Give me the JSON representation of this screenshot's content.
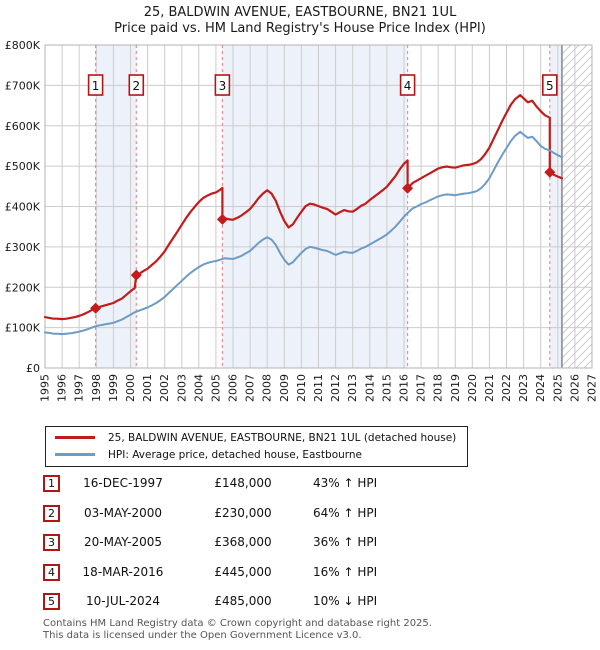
{
  "title": "25, BALDWIN AVENUE, EASTBOURNE, BN21 1UL",
  "subtitle": "Price paid vs. HM Land Registry's House Price Index (HPI)",
  "chart_data": {
    "type": "line",
    "x_range": [
      1995,
      2027
    ],
    "y_range": [
      0,
      800
    ],
    "units": "GBP_thousands",
    "y_ticks": [
      [
        0,
        "£0"
      ],
      [
        100,
        "£100K"
      ],
      [
        200,
        "£200K"
      ],
      [
        300,
        "£300K"
      ],
      [
        400,
        "£400K"
      ],
      [
        500,
        "£500K"
      ],
      [
        600,
        "£600K"
      ],
      [
        700,
        "£700K"
      ],
      [
        800,
        "£800K"
      ]
    ],
    "grid": true,
    "band_color": "#edf2fa",
    "grid_color": "#cccccc",
    "border_color": "#b3b3b3",
    "hatch_color": "#cccccc",
    "dash_line_color": "#ee8f8f",
    "hatch_start": 2025.24,
    "bands": [
      [
        1997.96,
        2000.34
      ],
      [
        2005.38,
        2016.21
      ],
      [
        2024.53,
        2025.24
      ]
    ],
    "sales": [
      {
        "n": "1",
        "x": 1997.96,
        "value": 148
      },
      {
        "n": "2",
        "x": 2000.34,
        "value": 230
      },
      {
        "n": "3",
        "x": 2005.38,
        "value": 368
      },
      {
        "n": "4",
        "x": 2016.21,
        "value": 445
      },
      {
        "n": "5",
        "x": 2024.53,
        "value": 485
      }
    ],
    "series": [
      {
        "name": "25, BALDWIN AVENUE, EASTBOURNE, BN21 1UL (detached house)",
        "color": "#c41a1a",
        "values": [
          [
            1995.0,
            126
          ],
          [
            1995.25,
            124
          ],
          [
            1995.5,
            122
          ],
          [
            1995.75,
            122
          ],
          [
            1996.0,
            121
          ],
          [
            1996.25,
            122
          ],
          [
            1996.5,
            124
          ],
          [
            1996.75,
            126
          ],
          [
            1997.0,
            129
          ],
          [
            1997.25,
            133
          ],
          [
            1997.5,
            138
          ],
          [
            1997.75,
            144
          ],
          [
            1997.96,
            148
          ],
          [
            1998.25,
            152
          ],
          [
            1998.5,
            155
          ],
          [
            1998.75,
            158
          ],
          [
            1999.0,
            161
          ],
          [
            1999.25,
            167
          ],
          [
            1999.5,
            172
          ],
          [
            1999.75,
            181
          ],
          [
            2000.0,
            190
          ],
          [
            2000.25,
            198
          ],
          [
            2000.34,
            230
          ],
          [
            2000.5,
            233
          ],
          [
            2000.75,
            240
          ],
          [
            2001.0,
            246
          ],
          [
            2001.25,
            255
          ],
          [
            2001.5,
            264
          ],
          [
            2001.75,
            276
          ],
          [
            2002.0,
            289
          ],
          [
            2002.25,
            306
          ],
          [
            2002.5,
            322
          ],
          [
            2002.75,
            338
          ],
          [
            2003.0,
            355
          ],
          [
            2003.25,
            371
          ],
          [
            2003.5,
            386
          ],
          [
            2003.75,
            399
          ],
          [
            2004.0,
            411
          ],
          [
            2004.25,
            421
          ],
          [
            2004.5,
            427
          ],
          [
            2004.75,
            432
          ],
          [
            2005.0,
            435
          ],
          [
            2005.2,
            440
          ],
          [
            2005.38,
            446
          ],
          [
            2005.38,
            368
          ],
          [
            2005.6,
            370
          ],
          [
            2005.8,
            368
          ],
          [
            2006.0,
            367
          ],
          [
            2006.25,
            372
          ],
          [
            2006.5,
            378
          ],
          [
            2006.75,
            386
          ],
          [
            2007.0,
            394
          ],
          [
            2007.25,
            407
          ],
          [
            2007.5,
            421
          ],
          [
            2007.75,
            432
          ],
          [
            2008.0,
            440
          ],
          [
            2008.25,
            432
          ],
          [
            2008.5,
            414
          ],
          [
            2008.75,
            387
          ],
          [
            2009.0,
            364
          ],
          [
            2009.25,
            348
          ],
          [
            2009.5,
            356
          ],
          [
            2009.75,
            372
          ],
          [
            2010.0,
            387
          ],
          [
            2010.25,
            401
          ],
          [
            2010.5,
            407
          ],
          [
            2010.75,
            405
          ],
          [
            2011.0,
            401
          ],
          [
            2011.25,
            397
          ],
          [
            2011.5,
            394
          ],
          [
            2011.75,
            387
          ],
          [
            2012.0,
            380
          ],
          [
            2012.25,
            386
          ],
          [
            2012.5,
            391
          ],
          [
            2012.75,
            388
          ],
          [
            2013.0,
            387
          ],
          [
            2013.25,
            394
          ],
          [
            2013.5,
            402
          ],
          [
            2013.75,
            407
          ],
          [
            2014.0,
            416
          ],
          [
            2014.25,
            424
          ],
          [
            2014.5,
            432
          ],
          [
            2014.75,
            440
          ],
          [
            2015.0,
            449
          ],
          [
            2015.25,
            462
          ],
          [
            2015.5,
            475
          ],
          [
            2015.75,
            492
          ],
          [
            2016.0,
            506
          ],
          [
            2016.21,
            514
          ],
          [
            2016.21,
            445
          ],
          [
            2016.5,
            458
          ],
          [
            2016.75,
            464
          ],
          [
            2017.0,
            470
          ],
          [
            2017.25,
            476
          ],
          [
            2017.5,
            482
          ],
          [
            2017.75,
            488
          ],
          [
            2018.0,
            494
          ],
          [
            2018.25,
            497
          ],
          [
            2018.5,
            499
          ],
          [
            2018.75,
            497
          ],
          [
            2019.0,
            496
          ],
          [
            2019.25,
            499
          ],
          [
            2019.5,
            502
          ],
          [
            2019.75,
            503
          ],
          [
            2020.0,
            505
          ],
          [
            2020.25,
            509
          ],
          [
            2020.5,
            517
          ],
          [
            2020.75,
            530
          ],
          [
            2021.0,
            546
          ],
          [
            2021.25,
            568
          ],
          [
            2021.5,
            590
          ],
          [
            2021.75,
            612
          ],
          [
            2022.0,
            632
          ],
          [
            2022.25,
            652
          ],
          [
            2022.5,
            666
          ],
          [
            2022.8,
            676
          ],
          [
            2023.0,
            668
          ],
          [
            2023.25,
            658
          ],
          [
            2023.5,
            662
          ],
          [
            2023.75,
            648
          ],
          [
            2024.0,
            636
          ],
          [
            2024.25,
            626
          ],
          [
            2024.53,
            620
          ],
          [
            2024.53,
            485
          ],
          [
            2024.75,
            479
          ],
          [
            2025.0,
            474
          ],
          [
            2025.24,
            470
          ]
        ]
      },
      {
        "name": "HPI: Average price, detached house, Eastbourne",
        "color": "#6d9bc7",
        "values": [
          [
            1995.0,
            88
          ],
          [
            1995.25,
            87
          ],
          [
            1995.5,
            85
          ],
          [
            1995.75,
            85
          ],
          [
            1996.0,
            84
          ],
          [
            1996.25,
            85
          ],
          [
            1996.5,
            86
          ],
          [
            1996.75,
            88
          ],
          [
            1997.0,
            90
          ],
          [
            1997.25,
            93
          ],
          [
            1997.5,
            96
          ],
          [
            1997.75,
            100
          ],
          [
            1998.0,
            104
          ],
          [
            1998.25,
            106
          ],
          [
            1998.5,
            108
          ],
          [
            1998.75,
            110
          ],
          [
            1999.0,
            112
          ],
          [
            1999.25,
            116
          ],
          [
            1999.5,
            120
          ],
          [
            1999.75,
            126
          ],
          [
            2000.0,
            132
          ],
          [
            2000.25,
            138
          ],
          [
            2000.5,
            142
          ],
          [
            2000.75,
            146
          ],
          [
            2001.0,
            150
          ],
          [
            2001.25,
            155
          ],
          [
            2001.5,
            161
          ],
          [
            2001.75,
            168
          ],
          [
            2002.0,
            176
          ],
          [
            2002.25,
            186
          ],
          [
            2002.5,
            196
          ],
          [
            2002.75,
            206
          ],
          [
            2003.0,
            216
          ],
          [
            2003.25,
            226
          ],
          [
            2003.5,
            235
          ],
          [
            2003.75,
            243
          ],
          [
            2004.0,
            250
          ],
          [
            2004.25,
            256
          ],
          [
            2004.5,
            260
          ],
          [
            2004.75,
            263
          ],
          [
            2005.0,
            265
          ],
          [
            2005.25,
            268
          ],
          [
            2005.5,
            272
          ],
          [
            2005.75,
            271
          ],
          [
            2006.0,
            270
          ],
          [
            2006.25,
            274
          ],
          [
            2006.5,
            278
          ],
          [
            2006.75,
            284
          ],
          [
            2007.0,
            290
          ],
          [
            2007.25,
            300
          ],
          [
            2007.5,
            310
          ],
          [
            2007.75,
            318
          ],
          [
            2008.0,
            324
          ],
          [
            2008.25,
            318
          ],
          [
            2008.5,
            305
          ],
          [
            2008.75,
            285
          ],
          [
            2009.0,
            268
          ],
          [
            2009.25,
            256
          ],
          [
            2009.5,
            262
          ],
          [
            2009.75,
            274
          ],
          [
            2010.0,
            285
          ],
          [
            2010.25,
            295
          ],
          [
            2010.5,
            300
          ],
          [
            2010.75,
            298
          ],
          [
            2011.0,
            295
          ],
          [
            2011.25,
            292
          ],
          [
            2011.5,
            290
          ],
          [
            2011.75,
            285
          ],
          [
            2012.0,
            280
          ],
          [
            2012.25,
            284
          ],
          [
            2012.5,
            288
          ],
          [
            2012.75,
            286
          ],
          [
            2013.0,
            285
          ],
          [
            2013.25,
            290
          ],
          [
            2013.5,
            296
          ],
          [
            2013.75,
            300
          ],
          [
            2014.0,
            306
          ],
          [
            2014.25,
            312
          ],
          [
            2014.5,
            318
          ],
          [
            2014.75,
            324
          ],
          [
            2015.0,
            331
          ],
          [
            2015.25,
            340
          ],
          [
            2015.5,
            350
          ],
          [
            2015.75,
            362
          ],
          [
            2016.0,
            375
          ],
          [
            2016.21,
            384
          ],
          [
            2016.5,
            395
          ],
          [
            2016.75,
            400
          ],
          [
            2017.0,
            406
          ],
          [
            2017.25,
            410
          ],
          [
            2017.5,
            415
          ],
          [
            2017.75,
            420
          ],
          [
            2018.0,
            425
          ],
          [
            2018.25,
            428
          ],
          [
            2018.5,
            430
          ],
          [
            2018.75,
            429
          ],
          [
            2019.0,
            428
          ],
          [
            2019.25,
            430
          ],
          [
            2019.5,
            432
          ],
          [
            2019.75,
            433
          ],
          [
            2020.0,
            435
          ],
          [
            2020.25,
            438
          ],
          [
            2020.5,
            445
          ],
          [
            2020.75,
            456
          ],
          [
            2021.0,
            470
          ],
          [
            2021.25,
            490
          ],
          [
            2021.5,
            510
          ],
          [
            2021.75,
            528
          ],
          [
            2022.0,
            545
          ],
          [
            2022.25,
            562
          ],
          [
            2022.5,
            575
          ],
          [
            2022.8,
            585
          ],
          [
            2023.0,
            578
          ],
          [
            2023.25,
            570
          ],
          [
            2023.5,
            573
          ],
          [
            2023.75,
            562
          ],
          [
            2024.0,
            550
          ],
          [
            2024.25,
            543
          ],
          [
            2024.53,
            539
          ],
          [
            2024.75,
            533
          ],
          [
            2025.0,
            527
          ],
          [
            2025.24,
            522
          ]
        ]
      }
    ]
  },
  "legend": {
    "items": [
      {
        "label": "25, BALDWIN AVENUE, EASTBOURNE, BN21 1UL (detached house)",
        "color": "#c41a1a"
      },
      {
        "label": "HPI: Average price, detached house, Eastbourne",
        "color": "#6d9bc7"
      }
    ]
  },
  "sales_table": {
    "rows": [
      {
        "num": "1",
        "date": "16-DEC-1997",
        "price": "£148,000",
        "delta": "43% ↑ HPI"
      },
      {
        "num": "2",
        "date": "03-MAY-2000",
        "price": "£230,000",
        "delta": "64% ↑ HPI"
      },
      {
        "num": "3",
        "date": "20-MAY-2005",
        "price": "£368,000",
        "delta": "36% ↑ HPI"
      },
      {
        "num": "4",
        "date": "18-MAR-2016",
        "price": "£445,000",
        "delta": "16% ↑ HPI"
      },
      {
        "num": "5",
        "date": "10-JUL-2024",
        "price": "£485,000",
        "delta": "10% ↓ HPI"
      }
    ]
  },
  "footer": {
    "line1": "Contains HM Land Registry data © Crown copyright and database right 2025.",
    "line2": "This data is licensed under the Open Government Licence v3.0."
  }
}
